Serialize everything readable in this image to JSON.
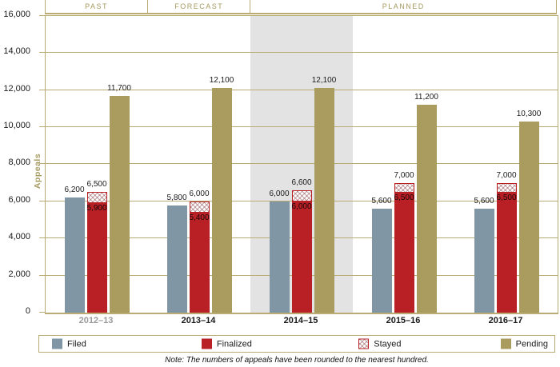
{
  "header": {
    "sections": [
      {
        "label": "PAST",
        "span": 1
      },
      {
        "label": "FORECAST",
        "span": 1
      },
      {
        "label": "PLANNED",
        "span": 3
      }
    ]
  },
  "chart_data": {
    "type": "bar",
    "title": "",
    "xlabel": "",
    "ylabel": "Appeals",
    "ylim": [
      0,
      16000
    ],
    "ytick_step": 2000,
    "ytick_labels": [
      "0",
      "2,000",
      "4,000",
      "6,000",
      "8,000",
      "10,000",
      "12,000",
      "14,000",
      "16,000"
    ],
    "grid": true,
    "legend_position": "bottom",
    "categories": [
      "2012–13",
      "2013–14",
      "2014–15",
      "2015–16",
      "2016–17"
    ],
    "muted_category_index": 0,
    "highlight_band_category_index": 2,
    "series": [
      {
        "name": "Filed",
        "values": [
          6200,
          5800,
          6000,
          5600,
          5600
        ]
      },
      {
        "name": "Finalized",
        "values": [
          5900,
          5400,
          6000,
          6500,
          6500
        ]
      },
      {
        "name": "Stayed",
        "values": [
          600,
          600,
          600,
          500,
          500
        ]
      },
      {
        "name": "Pending",
        "values": [
          11700,
          12100,
          12100,
          11200,
          10300
        ]
      }
    ],
    "stack": {
      "base": "Finalized",
      "top": "Stayed",
      "total_labels": [
        "6,500",
        "6,000",
        "6,600",
        "7,000",
        "7,000"
      ]
    },
    "legend": [
      {
        "name": "Filed",
        "swatch": "filed"
      },
      {
        "name": "Finalized",
        "swatch": "finalized"
      },
      {
        "name": "Stayed",
        "swatch": "stayed"
      },
      {
        "name": "Pending",
        "swatch": "pending"
      }
    ],
    "colors": {
      "filed": "#8196a4",
      "finalized": "#b92025",
      "pending": "#a99c5e",
      "grid": "#b9ab72",
      "section_label": "#a69a5f",
      "band": "#e3e3e3",
      "muted_label": "#9a9a9a",
      "text": "#1a1a1a"
    }
  },
  "note": {
    "text": "Note: The numbers of appeals have been rounded to the nearest hundred."
  }
}
